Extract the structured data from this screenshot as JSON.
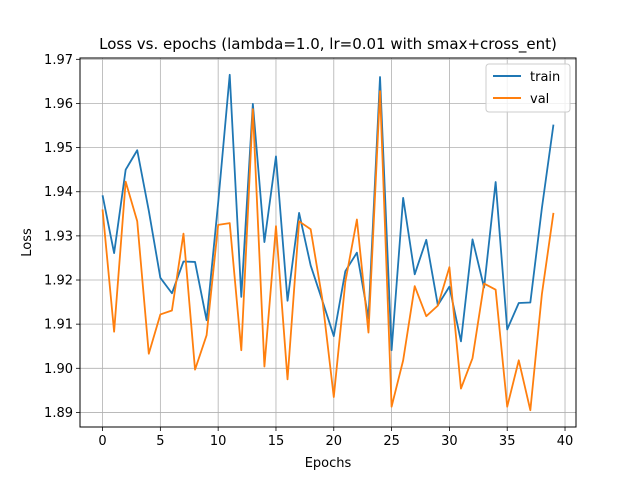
{
  "chart_data": {
    "type": "line",
    "title": "Loss vs. epochs (lambda=1.0, lr=0.01 with smax+cross_ent)",
    "xlabel": "Epochs",
    "ylabel": "Loss",
    "xlim": [
      -1.95,
      40.95
    ],
    "ylim": [
      1.8867,
      1.9703
    ],
    "x_ticks": [
      0,
      5,
      10,
      15,
      20,
      25,
      30,
      35,
      40
    ],
    "y_ticks": [
      1.89,
      1.9,
      1.91,
      1.92,
      1.93,
      1.94,
      1.95,
      1.96,
      1.97
    ],
    "y_tick_labels": [
      "1.89",
      "1.90",
      "1.91",
      "1.92",
      "1.93",
      "1.94",
      "1.95",
      "1.96",
      "1.97"
    ],
    "grid": true,
    "legend": "top-right",
    "x": [
      0,
      1,
      2,
      3,
      4,
      5,
      6,
      7,
      8,
      9,
      10,
      11,
      12,
      13,
      14,
      15,
      16,
      17,
      18,
      19,
      20,
      21,
      22,
      23,
      24,
      25,
      26,
      27,
      28,
      29,
      30,
      31,
      32,
      33,
      34,
      35,
      36,
      37,
      38,
      39
    ],
    "series": [
      {
        "name": "train",
        "color": "#1f77b4",
        "values": [
          1.9392,
          1.9261,
          1.945,
          1.9494,
          1.9357,
          1.9205,
          1.917,
          1.9242,
          1.9241,
          1.9109,
          1.9375,
          1.9665,
          1.9162,
          1.9599,
          1.9286,
          1.948,
          1.9153,
          1.9352,
          1.9233,
          1.9154,
          1.9073,
          1.922,
          1.9262,
          1.9113,
          1.966,
          1.9041,
          1.9386,
          1.9213,
          1.9291,
          1.9143,
          1.9185,
          1.9061,
          1.9292,
          1.9183,
          1.9422,
          1.9088,
          1.9148,
          1.9149,
          1.9363,
          1.9552
        ]
      },
      {
        "name": "val",
        "color": "#ff7f0e",
        "values": [
          1.936,
          1.9083,
          1.9423,
          1.9333,
          1.9033,
          1.9122,
          1.9131,
          1.9305,
          1.8997,
          1.9075,
          1.9325,
          1.9329,
          1.9041,
          1.9587,
          1.9004,
          1.9322,
          1.8975,
          1.9333,
          1.9315,
          1.9158,
          1.8935,
          1.9196,
          1.9337,
          1.9081,
          1.9628,
          1.8913,
          1.9018,
          1.9186,
          1.9118,
          1.9142,
          1.9229,
          1.8954,
          1.9023,
          1.9192,
          1.9178,
          1.8913,
          1.9018,
          1.8905,
          1.9168,
          1.9352
        ]
      }
    ]
  }
}
